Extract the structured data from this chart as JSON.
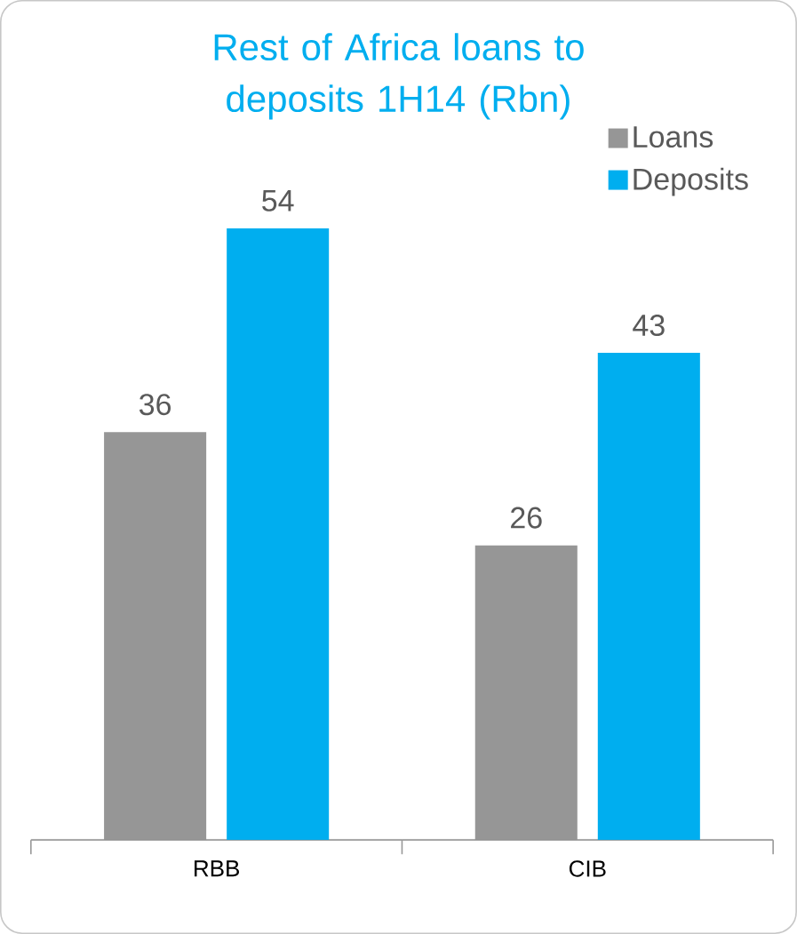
{
  "chart_data": {
    "type": "bar",
    "title": "Rest of Africa loans to deposits 1H14 (Rbn)",
    "categories": [
      "RBB",
      "CIB"
    ],
    "series": [
      {
        "name": "Loans",
        "color": "#969696",
        "values": [
          36,
          26
        ]
      },
      {
        "name": "Deposits",
        "color": "#00aeef",
        "values": [
          54,
          43
        ]
      }
    ],
    "data_labels": true,
    "legend": "top right"
  }
}
